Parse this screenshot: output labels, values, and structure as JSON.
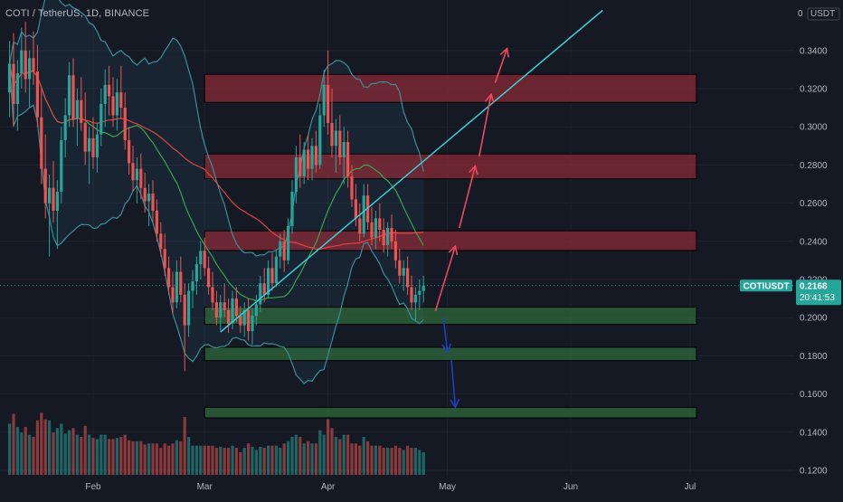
{
  "header": {
    "symbol": "COTI / TetherUS, 1D, BINANCE"
  },
  "colors": {
    "background": "#151924",
    "bull": "#26a69a",
    "bear": "#ef5350",
    "resistance_zone": "#8e2a36",
    "support_zone": "#2f6b3c",
    "trendline": "#3ad1d6",
    "arrow_up": "#f0485a",
    "arrow_down": "#1e3fbf",
    "bollinger": "#3a8f9a",
    "ma_short": "#3aa34e",
    "ma_long": "#d9473f",
    "badge": "#26a69a"
  },
  "price_axis": {
    "currency_label": "USDT",
    "top_label": "0",
    "ticks": [
      "0.3400",
      "0.3200",
      "0.3000",
      "0.2800",
      "0.2600",
      "0.2400",
      "0.2200",
      "0.2000",
      "0.1800",
      "0.1600",
      "0.1400",
      "0.1200"
    ],
    "tick_values": [
      0.34,
      0.32,
      0.3,
      0.28,
      0.26,
      0.24,
      0.22,
      0.2,
      0.18,
      0.16,
      0.14,
      0.12
    ]
  },
  "time_axis": {
    "labels": [
      "Feb",
      "Mar",
      "Apr",
      "May",
      "Jun",
      "Jul"
    ]
  },
  "last_price": {
    "symbol": "COTIUSDT",
    "price": "0.2168",
    "countdown": "20:41:53",
    "value": 0.2168
  },
  "chart_data": {
    "type": "candlestick",
    "title": "COTI / TetherUS, 1D, BINANCE",
    "y_unit": "USDT",
    "ylim": [
      0.115,
      0.355
    ],
    "resistance_zones": [
      {
        "low": 0.3128,
        "high": 0.3275
      },
      {
        "low": 0.2728,
        "high": 0.2858
      },
      {
        "low": 0.2352,
        "high": 0.2455
      }
    ],
    "support_zones": [
      {
        "low": 0.1965,
        "high": 0.2055
      },
      {
        "low": 0.1775,
        "high": 0.1845
      },
      {
        "low": 0.1475,
        "high": 0.153
      }
    ],
    "trendline": {
      "from": [
        "Mar 5",
        0.1925
      ],
      "to": [
        "Jun 9",
        0.361
      ]
    },
    "arrows_up": [
      [
        [
          "Apr 28",
          0.2035
        ],
        [
          "May 3",
          0.2375
        ]
      ],
      [
        [
          "May 4",
          0.247
        ],
        [
          "May 8",
          0.2795
        ]
      ],
      [
        [
          "May 9",
          0.2845
        ],
        [
          "May 12",
          0.317
        ]
      ],
      [
        [
          "May 13",
          0.323
        ],
        [
          "May 16",
          0.341
        ]
      ]
    ],
    "arrows_down": [
      [
        [
          "Apr 30",
          0.2
        ],
        [
          "May 1",
          0.182
        ]
      ],
      [
        [
          "May 2",
          0.178
        ],
        [
          "May 3",
          0.153
        ]
      ]
    ],
    "candles": [
      {
        "x": "Jan 11",
        "o": 0.318,
        "h": 0.345,
        "l": 0.305,
        "c": 0.333
      },
      {
        "x": "Jan 12",
        "o": 0.333,
        "h": 0.349,
        "l": 0.3,
        "c": 0.312
      },
      {
        "x": "Jan 13",
        "o": 0.312,
        "h": 0.335,
        "l": 0.298,
        "c": 0.328
      },
      {
        "x": "Jan 14",
        "o": 0.328,
        "h": 0.352,
        "l": 0.32,
        "c": 0.34
      },
      {
        "x": "Jan 15",
        "o": 0.34,
        "h": 0.355,
        "l": 0.318,
        "c": 0.325
      },
      {
        "x": "Jan 16",
        "o": 0.325,
        "h": 0.34,
        "l": 0.31,
        "c": 0.336
      },
      {
        "x": "Jan 17",
        "o": 0.336,
        "h": 0.35,
        "l": 0.322,
        "c": 0.329
      },
      {
        "x": "Jan 18",
        "o": 0.329,
        "h": 0.343,
        "l": 0.3,
        "c": 0.305
      },
      {
        "x": "Jan 19",
        "o": 0.305,
        "h": 0.32,
        "l": 0.27,
        "c": 0.278
      },
      {
        "x": "Jan 20",
        "o": 0.278,
        "h": 0.296,
        "l": 0.252,
        "c": 0.26
      },
      {
        "x": "Jan 21",
        "o": 0.26,
        "h": 0.275,
        "l": 0.232,
        "c": 0.268
      },
      {
        "x": "Jan 22",
        "o": 0.268,
        "h": 0.282,
        "l": 0.25,
        "c": 0.256
      },
      {
        "x": "Jan 23",
        "o": 0.256,
        "h": 0.272,
        "l": 0.236,
        "c": 0.266
      },
      {
        "x": "Jan 24",
        "o": 0.266,
        "h": 0.3,
        "l": 0.26,
        "c": 0.293
      },
      {
        "x": "Jan 25",
        "o": 0.293,
        "h": 0.315,
        "l": 0.284,
        "c": 0.306
      },
      {
        "x": "Jan 26",
        "o": 0.306,
        "h": 0.334,
        "l": 0.3,
        "c": 0.327
      },
      {
        "x": "Jan 27",
        "o": 0.327,
        "h": 0.336,
        "l": 0.3,
        "c": 0.304
      },
      {
        "x": "Jan 28",
        "o": 0.304,
        "h": 0.32,
        "l": 0.29,
        "c": 0.314
      },
      {
        "x": "Jan 29",
        "o": 0.314,
        "h": 0.326,
        "l": 0.298,
        "c": 0.302
      },
      {
        "x": "Jan 30",
        "o": 0.302,
        "h": 0.318,
        "l": 0.28,
        "c": 0.287
      },
      {
        "x": "Jan 31",
        "o": 0.287,
        "h": 0.3,
        "l": 0.27,
        "c": 0.294
      },
      {
        "x": "Feb 1",
        "o": 0.294,
        "h": 0.305,
        "l": 0.278,
        "c": 0.284
      },
      {
        "x": "Feb 2",
        "o": 0.284,
        "h": 0.302,
        "l": 0.276,
        "c": 0.296
      },
      {
        "x": "Feb 3",
        "o": 0.296,
        "h": 0.32,
        "l": 0.29,
        "c": 0.312
      },
      {
        "x": "Feb 4",
        "o": 0.312,
        "h": 0.33,
        "l": 0.3,
        "c": 0.322
      },
      {
        "x": "Feb 5",
        "o": 0.322,
        "h": 0.332,
        "l": 0.306,
        "c": 0.316
      },
      {
        "x": "Feb 6",
        "o": 0.316,
        "h": 0.326,
        "l": 0.3,
        "c": 0.306
      },
      {
        "x": "Feb 7",
        "o": 0.306,
        "h": 0.325,
        "l": 0.298,
        "c": 0.318
      },
      {
        "x": "Feb 8",
        "o": 0.318,
        "h": 0.332,
        "l": 0.304,
        "c": 0.31
      },
      {
        "x": "Feb 9",
        "o": 0.31,
        "h": 0.318,
        "l": 0.288,
        "c": 0.293
      },
      {
        "x": "Feb 10",
        "o": 0.293,
        "h": 0.3,
        "l": 0.275,
        "c": 0.281
      },
      {
        "x": "Feb 11",
        "o": 0.281,
        "h": 0.29,
        "l": 0.266,
        "c": 0.272
      },
      {
        "x": "Feb 12",
        "o": 0.272,
        "h": 0.284,
        "l": 0.26,
        "c": 0.278
      },
      {
        "x": "Feb 13",
        "o": 0.278,
        "h": 0.286,
        "l": 0.262,
        "c": 0.268
      },
      {
        "x": "Feb 14",
        "o": 0.268,
        "h": 0.276,
        "l": 0.255,
        "c": 0.261
      },
      {
        "x": "Feb 15",
        "o": 0.261,
        "h": 0.27,
        "l": 0.248,
        "c": 0.265
      },
      {
        "x": "Feb 16",
        "o": 0.265,
        "h": 0.272,
        "l": 0.25,
        "c": 0.256
      },
      {
        "x": "Feb 17",
        "o": 0.256,
        "h": 0.262,
        "l": 0.24,
        "c": 0.244
      },
      {
        "x": "Feb 18",
        "o": 0.244,
        "h": 0.25,
        "l": 0.232,
        "c": 0.236
      },
      {
        "x": "Feb 19",
        "o": 0.236,
        "h": 0.244,
        "l": 0.222,
        "c": 0.226
      },
      {
        "x": "Feb 20",
        "o": 0.226,
        "h": 0.232,
        "l": 0.212,
        "c": 0.216
      },
      {
        "x": "Feb 21",
        "o": 0.216,
        "h": 0.224,
        "l": 0.202,
        "c": 0.208
      },
      {
        "x": "Feb 22",
        "o": 0.208,
        "h": 0.23,
        "l": 0.205,
        "c": 0.224
      },
      {
        "x": "Feb 23",
        "o": 0.224,
        "h": 0.232,
        "l": 0.208,
        "c": 0.212
      },
      {
        "x": "Feb 24",
        "o": 0.212,
        "h": 0.218,
        "l": 0.172,
        "c": 0.196
      },
      {
        "x": "Feb 25",
        "o": 0.196,
        "h": 0.218,
        "l": 0.19,
        "c": 0.214
      },
      {
        "x": "Feb 26",
        "o": 0.214,
        "h": 0.225,
        "l": 0.205,
        "c": 0.219
      },
      {
        "x": "Feb 27",
        "o": 0.219,
        "h": 0.232,
        "l": 0.212,
        "c": 0.228
      },
      {
        "x": "Feb 28",
        "o": 0.228,
        "h": 0.24,
        "l": 0.22,
        "c": 0.235
      },
      {
        "x": "Mar 1",
        "o": 0.235,
        "h": 0.242,
        "l": 0.222,
        "c": 0.226
      },
      {
        "x": "Mar 2",
        "o": 0.226,
        "h": 0.232,
        "l": 0.212,
        "c": 0.216
      },
      {
        "x": "Mar 3",
        "o": 0.216,
        "h": 0.224,
        "l": 0.204,
        "c": 0.208
      },
      {
        "x": "Mar 4",
        "o": 0.208,
        "h": 0.214,
        "l": 0.196,
        "c": 0.2
      },
      {
        "x": "Mar 5",
        "o": 0.2,
        "h": 0.212,
        "l": 0.193,
        "c": 0.208
      },
      {
        "x": "Mar 6",
        "o": 0.208,
        "h": 0.218,
        "l": 0.2,
        "c": 0.204
      },
      {
        "x": "Mar 7",
        "o": 0.204,
        "h": 0.21,
        "l": 0.192,
        "c": 0.197
      },
      {
        "x": "Mar 8",
        "o": 0.197,
        "h": 0.214,
        "l": 0.194,
        "c": 0.21
      },
      {
        "x": "Mar 9",
        "o": 0.21,
        "h": 0.216,
        "l": 0.198,
        "c": 0.201
      },
      {
        "x": "Mar 10",
        "o": 0.201,
        "h": 0.206,
        "l": 0.192,
        "c": 0.196
      },
      {
        "x": "Mar 11",
        "o": 0.196,
        "h": 0.208,
        "l": 0.19,
        "c": 0.204
      },
      {
        "x": "Mar 12",
        "o": 0.204,
        "h": 0.21,
        "l": 0.188,
        "c": 0.193
      },
      {
        "x": "Mar 13",
        "o": 0.193,
        "h": 0.205,
        "l": 0.186,
        "c": 0.201
      },
      {
        "x": "Mar 14",
        "o": 0.201,
        "h": 0.212,
        "l": 0.196,
        "c": 0.207
      },
      {
        "x": "Mar 15",
        "o": 0.207,
        "h": 0.222,
        "l": 0.203,
        "c": 0.218
      },
      {
        "x": "Mar 16",
        "o": 0.218,
        "h": 0.226,
        "l": 0.208,
        "c": 0.212
      },
      {
        "x": "Mar 17",
        "o": 0.212,
        "h": 0.23,
        "l": 0.21,
        "c": 0.226
      },
      {
        "x": "Mar 18",
        "o": 0.226,
        "h": 0.234,
        "l": 0.214,
        "c": 0.218
      },
      {
        "x": "Mar 19",
        "o": 0.218,
        "h": 0.236,
        "l": 0.216,
        "c": 0.232
      },
      {
        "x": "Mar 20",
        "o": 0.232,
        "h": 0.244,
        "l": 0.226,
        "c": 0.24
      },
      {
        "x": "Mar 21",
        "o": 0.24,
        "h": 0.246,
        "l": 0.224,
        "c": 0.23
      },
      {
        "x": "Mar 22",
        "o": 0.23,
        "h": 0.252,
        "l": 0.228,
        "c": 0.248
      },
      {
        "x": "Mar 23",
        "o": 0.248,
        "h": 0.272,
        "l": 0.244,
        "c": 0.266
      },
      {
        "x": "Mar 24",
        "o": 0.266,
        "h": 0.29,
        "l": 0.26,
        "c": 0.284
      },
      {
        "x": "Mar 25",
        "o": 0.284,
        "h": 0.296,
        "l": 0.268,
        "c": 0.274
      },
      {
        "x": "Mar 26",
        "o": 0.274,
        "h": 0.292,
        "l": 0.27,
        "c": 0.288
      },
      {
        "x": "Mar 27",
        "o": 0.288,
        "h": 0.296,
        "l": 0.272,
        "c": 0.278
      },
      {
        "x": "Mar 28",
        "o": 0.278,
        "h": 0.294,
        "l": 0.272,
        "c": 0.29
      },
      {
        "x": "Mar 29",
        "o": 0.29,
        "h": 0.298,
        "l": 0.276,
        "c": 0.28
      },
      {
        "x": "Mar 30",
        "o": 0.28,
        "h": 0.312,
        "l": 0.278,
        "c": 0.306
      },
      {
        "x": "Mar 31",
        "o": 0.306,
        "h": 0.33,
        "l": 0.3,
        "c": 0.322
      },
      {
        "x": "Apr 1",
        "o": 0.322,
        "h": 0.34,
        "l": 0.296,
        "c": 0.302
      },
      {
        "x": "Apr 2",
        "o": 0.302,
        "h": 0.32,
        "l": 0.284,
        "c": 0.29
      },
      {
        "x": "Apr 3",
        "o": 0.29,
        "h": 0.304,
        "l": 0.276,
        "c": 0.298
      },
      {
        "x": "Apr 4",
        "o": 0.298,
        "h": 0.306,
        "l": 0.28,
        "c": 0.284
      },
      {
        "x": "Apr 5",
        "o": 0.284,
        "h": 0.3,
        "l": 0.27,
        "c": 0.292
      },
      {
        "x": "Apr 6",
        "o": 0.292,
        "h": 0.298,
        "l": 0.268,
        "c": 0.274
      },
      {
        "x": "Apr 7",
        "o": 0.274,
        "h": 0.28,
        "l": 0.258,
        "c": 0.262
      },
      {
        "x": "Apr 8",
        "o": 0.262,
        "h": 0.27,
        "l": 0.248,
        "c": 0.252
      },
      {
        "x": "Apr 9",
        "o": 0.252,
        "h": 0.26,
        "l": 0.24,
        "c": 0.244
      },
      {
        "x": "Apr 10",
        "o": 0.244,
        "h": 0.27,
        "l": 0.242,
        "c": 0.264
      },
      {
        "x": "Apr 11",
        "o": 0.264,
        "h": 0.27,
        "l": 0.246,
        "c": 0.25
      },
      {
        "x": "Apr 12",
        "o": 0.25,
        "h": 0.258,
        "l": 0.238,
        "c": 0.242
      },
      {
        "x": "Apr 13",
        "o": 0.242,
        "h": 0.256,
        "l": 0.236,
        "c": 0.252
      },
      {
        "x": "Apr 14",
        "o": 0.252,
        "h": 0.26,
        "l": 0.24,
        "c": 0.246
      },
      {
        "x": "Apr 15",
        "o": 0.246,
        "h": 0.252,
        "l": 0.234,
        "c": 0.238
      },
      {
        "x": "Apr 16",
        "o": 0.238,
        "h": 0.25,
        "l": 0.232,
        "c": 0.247
      },
      {
        "x": "Apr 17",
        "o": 0.247,
        "h": 0.254,
        "l": 0.236,
        "c": 0.24
      },
      {
        "x": "Apr 18",
        "o": 0.24,
        "h": 0.246,
        "l": 0.226,
        "c": 0.23
      },
      {
        "x": "Apr 19",
        "o": 0.23,
        "h": 0.236,
        "l": 0.218,
        "c": 0.222
      },
      {
        "x": "Apr 20",
        "o": 0.222,
        "h": 0.23,
        "l": 0.214,
        "c": 0.226
      },
      {
        "x": "Apr 21",
        "o": 0.226,
        "h": 0.232,
        "l": 0.212,
        "c": 0.216
      },
      {
        "x": "Apr 22",
        "o": 0.216,
        "h": 0.222,
        "l": 0.204,
        "c": 0.208
      },
      {
        "x": "Apr 23",
        "o": 0.208,
        "h": 0.216,
        "l": 0.198,
        "c": 0.212
      },
      {
        "x": "Apr 24",
        "o": 0.212,
        "h": 0.22,
        "l": 0.204,
        "c": 0.214
      },
      {
        "x": "Apr 25",
        "o": 0.214,
        "h": 0.222,
        "l": 0.208,
        "c": 0.2168
      }
    ]
  }
}
